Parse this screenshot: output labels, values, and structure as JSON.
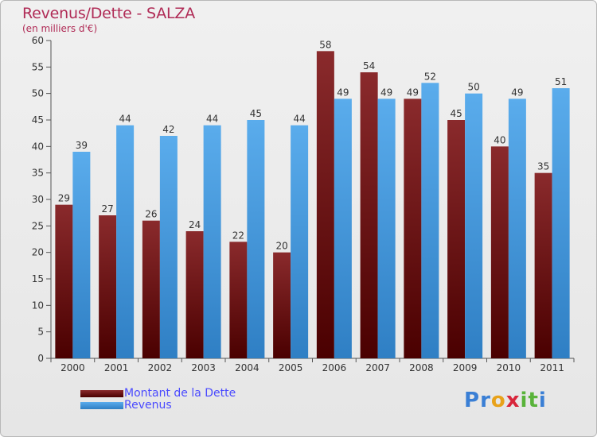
{
  "chart_data": {
    "type": "bar",
    "title": "Revenus/Dette - SALZA",
    "subtitle": "(en milliers d'€)",
    "categories": [
      "2000",
      "2001",
      "2002",
      "2003",
      "2004",
      "2005",
      "2006",
      "2007",
      "2008",
      "2009",
      "2010",
      "2011"
    ],
    "series": [
      {
        "name": "Montant de la Dette",
        "color": "#6b0f12",
        "values": [
          29,
          27,
          26,
          24,
          22,
          20,
          58,
          54,
          49,
          45,
          40,
          35
        ]
      },
      {
        "name": "Revenus",
        "color": "#3a95dd",
        "values": [
          39,
          44,
          42,
          44,
          45,
          44,
          49,
          49,
          52,
          50,
          49,
          51
        ]
      }
    ],
    "ylim": [
      0,
      60
    ],
    "yticks": [
      0,
      5,
      10,
      15,
      20,
      25,
      30,
      35,
      40,
      45,
      50,
      55,
      60
    ],
    "grid": false,
    "legend": "bottom-left"
  },
  "logo": {
    "letters": [
      {
        "char": "P",
        "color": "#3a7fd5"
      },
      {
        "char": "r",
        "color": "#3a7fd5"
      },
      {
        "char": "o",
        "color": "#e8a21a"
      },
      {
        "char": "x",
        "color": "#d8263b"
      },
      {
        "char": "i",
        "color": "#59b33a"
      },
      {
        "char": "t",
        "color": "#59b33a"
      },
      {
        "char": "i",
        "color": "#3a7fd5"
      }
    ]
  }
}
